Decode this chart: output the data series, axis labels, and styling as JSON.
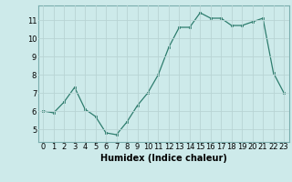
{
  "x": [
    0,
    1,
    2,
    3,
    4,
    5,
    6,
    7,
    8,
    9,
    10,
    11,
    12,
    13,
    14,
    15,
    16,
    17,
    18,
    19,
    20,
    21,
    22,
    23
  ],
  "y": [
    6.0,
    5.9,
    6.5,
    7.3,
    6.1,
    5.7,
    4.8,
    4.7,
    5.4,
    6.3,
    7.0,
    8.0,
    9.5,
    10.6,
    10.6,
    11.4,
    11.1,
    11.1,
    10.7,
    10.7,
    10.9,
    11.1,
    8.1,
    7.0
  ],
  "line_color": "#2e7d6e",
  "marker_color": "#2e7d6e",
  "bg_color": "#cdeaea",
  "grid_color": "#b8d4d4",
  "xlabel": "Humidex (Indice chaleur)",
  "xlim": [
    -0.5,
    23.5
  ],
  "ylim": [
    4.3,
    11.8
  ],
  "yticks": [
    5,
    6,
    7,
    8,
    9,
    10,
    11
  ],
  "xticks": [
    0,
    1,
    2,
    3,
    4,
    5,
    6,
    7,
    8,
    9,
    10,
    11,
    12,
    13,
    14,
    15,
    16,
    17,
    18,
    19,
    20,
    21,
    22,
    23
  ],
  "tick_fontsize": 6.0,
  "xlabel_fontsize": 7.0
}
